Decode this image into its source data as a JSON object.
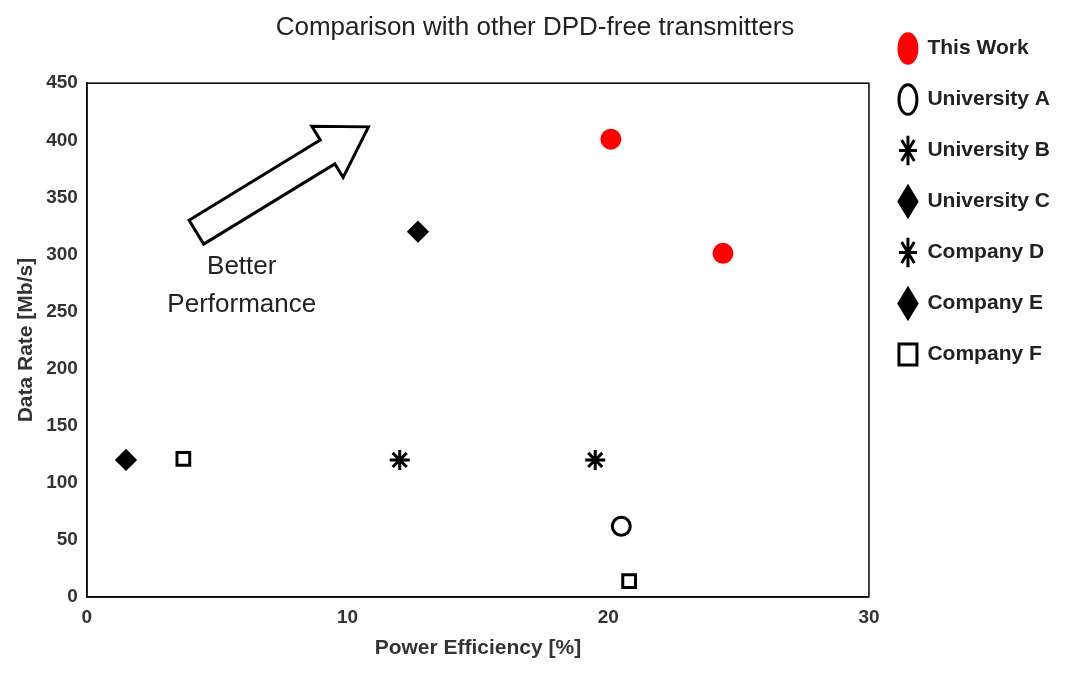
{
  "chart_data": {
    "type": "scatter",
    "title": "Comparison with other DPD-free transmitters",
    "x_label": "Power Efficiency [%]",
    "y_label": "Data Rate [Mb/s]",
    "annotation": "Better Performance",
    "xlim": [
      0,
      30
    ],
    "xticks": [
      0,
      10,
      20,
      30
    ],
    "ylim": [
      0,
      450
    ],
    "yticks": [
      0,
      50,
      100,
      150,
      200,
      250,
      300,
      350,
      400,
      450
    ],
    "grid": false,
    "legend": "right",
    "series": [
      {
        "name": "This Work",
        "color": "#ff0000",
        "marker": "circle",
        "x": [
          20.1,
          24.4
        ],
        "values": [
          401,
          301
        ]
      },
      {
        "name": "University A",
        "color": "#000000",
        "marker": "open_circle",
        "x": [
          20.5
        ],
        "values": [
          62
        ]
      },
      {
        "name": "University B",
        "color": "#000000",
        "marker": "star",
        "x": [
          12.0
        ],
        "values": [
          120
        ]
      },
      {
        "name": "University C",
        "color": "#000000",
        "marker": "diamond",
        "x": [
          12.7
        ],
        "values": [
          320
        ]
      },
      {
        "name": "Company D",
        "color": "#000000",
        "marker": "star",
        "x": [
          19.5
        ],
        "values": [
          120
        ]
      },
      {
        "name": "Company E",
        "color": "#000000",
        "marker": "diamond",
        "x": [
          1.5
        ],
        "values": [
          120
        ]
      },
      {
        "name": "Company F",
        "color": "#000000",
        "marker": "open_square",
        "x": [
          3.7,
          20.8
        ],
        "values": [
          121,
          14
        ]
      }
    ]
  }
}
